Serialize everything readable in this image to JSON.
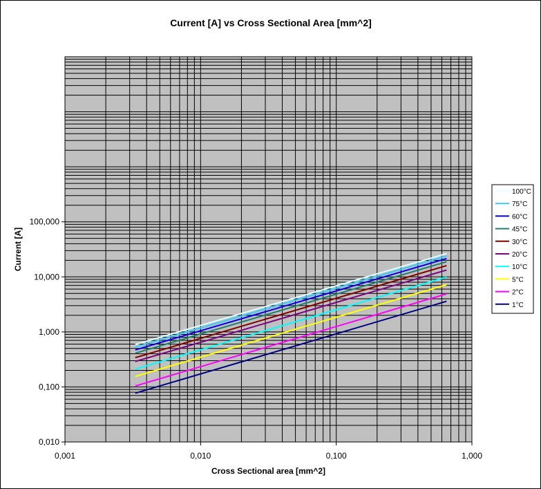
{
  "chart_data": {
    "type": "line",
    "title": "Current [A] vs Cross Sectional Area [mm^2]",
    "xlabel": "Cross Sectional area [mm^2]",
    "ylabel": "Current [A]",
    "xscale": "log",
    "yscale": "log",
    "xlim": [
      0.001,
      1.0
    ],
    "ylim": [
      0.01,
      100000
    ],
    "x_ticks": [
      {
        "value": 0.001,
        "label": "0,001"
      },
      {
        "value": 0.01,
        "label": "0,010"
      },
      {
        "value": 0.1,
        "label": "0,100"
      },
      {
        "value": 1.0,
        "label": "1,000"
      }
    ],
    "y_ticks": [
      {
        "value": 0.01,
        "label": "0,010"
      },
      {
        "value": 0.1,
        "label": "0,100"
      },
      {
        "value": 1,
        "label": "1,000"
      },
      {
        "value": 10,
        "label": "10,000"
      },
      {
        "value": 100,
        "label": "100,000"
      }
    ],
    "grid": true,
    "plot_background": "#c0c0c0",
    "legend_position": "right",
    "x_range_data": [
      0.0033,
      0.65
    ],
    "series": [
      {
        "name": "100°C",
        "color": "#e0ffff",
        "y_start": 0.59,
        "y_end": 26.5
      },
      {
        "name": "75°C",
        "color": "#33ccff",
        "y_start": 0.53,
        "y_end": 24.0
      },
      {
        "name": "60°C",
        "color": "#0000ee",
        "y_start": 0.47,
        "y_end": 21.5
      },
      {
        "name": "45°C",
        "color": "#1f7f6f",
        "y_start": 0.41,
        "y_end": 18.8
      },
      {
        "name": "30°C",
        "color": "#800000",
        "y_start": 0.34,
        "y_end": 16.0
      },
      {
        "name": "20°C",
        "color": "#800080",
        "y_start": 0.29,
        "y_end": 13.3
      },
      {
        "name": "10°C",
        "color": "#00ffff",
        "y_start": 0.21,
        "y_end": 9.9
      },
      {
        "name": "5°C",
        "color": "#ffff00",
        "y_start": 0.155,
        "y_end": 7.2
      },
      {
        "name": "2°C",
        "color": "#ff00ff",
        "y_start": 0.104,
        "y_end": 4.9
      },
      {
        "name": "1°C",
        "color": "#000080",
        "y_start": 0.077,
        "y_end": 3.6
      }
    ]
  }
}
